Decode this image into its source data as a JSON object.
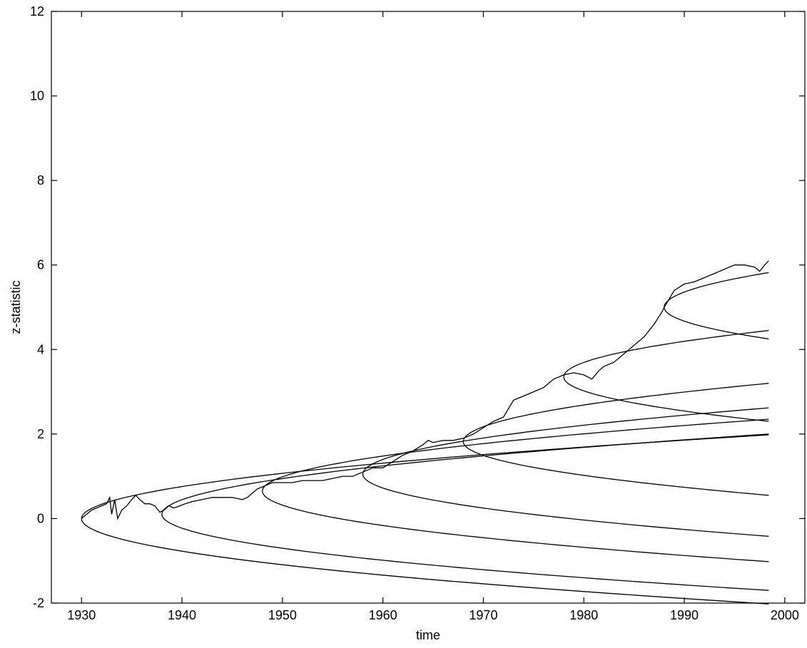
{
  "chart_data": {
    "type": "line",
    "title": "",
    "xlabel": "time",
    "ylabel": "z-statistic",
    "xlim": [
      1927,
      2002
    ],
    "ylim": [
      -2,
      12
    ],
    "xticks": [
      1930,
      1940,
      1950,
      1960,
      1970,
      1980,
      1990,
      2000
    ],
    "yticks": [
      -2,
      0,
      2,
      4,
      6,
      8,
      10,
      12
    ],
    "grid": false,
    "legend": "none",
    "line_color": "#000000",
    "series": [
      {
        "kind": "z-statistic path",
        "x": [
          1930.0,
          1930.5,
          1931.0,
          1931.5,
          1932.0,
          1932.5,
          1932.8,
          1933.0,
          1933.3,
          1933.6,
          1934.0,
          1934.5,
          1935.0,
          1935.4,
          1935.8,
          1936.3,
          1936.8,
          1937.3,
          1937.8,
          1938.2,
          1938.7,
          1939.2,
          1939.8,
          1940.3,
          1941.0,
          1942.0,
          1943.0,
          1944.0,
          1945.0,
          1946.0,
          1946.5,
          1947.0,
          1947.5,
          1948.0,
          1949.0,
          1950.0,
          1951.0,
          1952.0,
          1953.0,
          1954.0,
          1955.0,
          1956.0,
          1957.0,
          1958.0,
          1959.0,
          1960.0,
          1961.0,
          1962.0,
          1963.0,
          1964.0,
          1964.5,
          1965.0,
          1966.0,
          1967.0,
          1968.0,
          1969.0,
          1970.0,
          1971.0,
          1972.0,
          1972.5,
          1973.0,
          1974.0,
          1975.0,
          1976.0,
          1977.0,
          1978.0,
          1979.0,
          1980.0,
          1980.8,
          1981.5,
          1982.0,
          1983.0,
          1984.0,
          1985.0,
          1986.0,
          1987.0,
          1987.8,
          1988.0,
          1989.0,
          1990.0,
          1991.0,
          1992.0,
          1993.0,
          1994.0,
          1995.0,
          1996.0,
          1997.0,
          1997.5,
          1998.0,
          1998.4
        ],
        "y": [
          0.0,
          0.1,
          0.2,
          0.25,
          0.3,
          0.35,
          0.5,
          0.1,
          0.45,
          0.0,
          0.2,
          0.3,
          0.45,
          0.55,
          0.45,
          0.35,
          0.35,
          0.3,
          0.15,
          0.2,
          0.3,
          0.25,
          0.3,
          0.35,
          0.4,
          0.45,
          0.5,
          0.5,
          0.5,
          0.45,
          0.5,
          0.6,
          0.7,
          0.75,
          0.85,
          0.85,
          0.85,
          0.9,
          0.9,
          0.9,
          0.95,
          1.0,
          1.0,
          1.1,
          1.2,
          1.2,
          1.35,
          1.5,
          1.6,
          1.75,
          1.85,
          1.8,
          1.85,
          1.85,
          1.9,
          2.0,
          2.15,
          2.3,
          2.4,
          2.6,
          2.8,
          2.9,
          3.0,
          3.1,
          3.3,
          3.4,
          3.45,
          3.4,
          3.3,
          3.5,
          3.6,
          3.7,
          3.9,
          4.1,
          4.3,
          4.6,
          4.9,
          5.0,
          5.4,
          5.55,
          5.6,
          5.7,
          5.8,
          5.9,
          6.0,
          6.0,
          5.95,
          5.85,
          6.0,
          6.1
        ]
      },
      {
        "kind": "boundary",
        "start": [
          1930,
          0.0
        ],
        "end_upper": [
          1998.4,
          1.98
        ],
        "end_lower": [
          1998.4,
          -2.02
        ]
      },
      {
        "kind": "boundary",
        "start": [
          1938,
          0.1
        ],
        "end_upper": [
          1998.4,
          2.0
        ],
        "end_lower": [
          1998.4,
          -1.7
        ]
      },
      {
        "kind": "boundary",
        "start": [
          1948,
          0.65
        ],
        "end_upper": [
          1998.4,
          2.35
        ],
        "end_lower": [
          1998.4,
          -1.02
        ]
      },
      {
        "kind": "boundary",
        "start": [
          1958,
          1.05
        ],
        "end_upper": [
          1998.4,
          2.62
        ],
        "end_lower": [
          1998.4,
          -0.42
        ]
      },
      {
        "kind": "boundary",
        "start": [
          1968,
          1.82
        ],
        "end_upper": [
          1998.4,
          3.2
        ],
        "end_lower": [
          1998.4,
          0.55
        ]
      },
      {
        "kind": "boundary",
        "start": [
          1978,
          3.35
        ],
        "end_upper": [
          1998.4,
          4.45
        ],
        "end_lower": [
          1998.4,
          2.3
        ]
      },
      {
        "kind": "boundary",
        "start": [
          1988,
          5.0
        ],
        "end_upper": [
          1998.4,
          5.82
        ],
        "end_lower": [
          1998.4,
          4.25
        ]
      }
    ]
  }
}
